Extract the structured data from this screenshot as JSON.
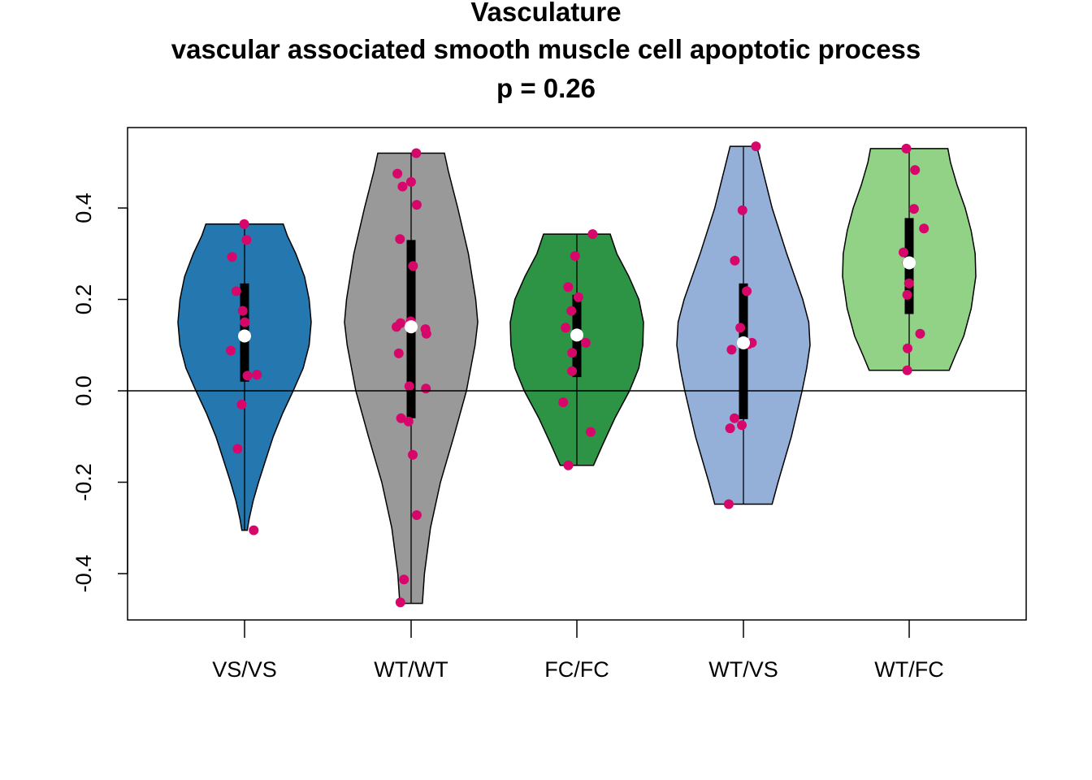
{
  "chart_data": {
    "type": "violin",
    "title": "Vasculature",
    "subtitle": "vascular associated smooth muscle cell apoptotic process",
    "pvalue_label": "p = 0.26",
    "xlabel": "",
    "ylabel": "",
    "ylim": [
      -0.5,
      0.55
    ],
    "y_ticks": [
      -0.4,
      -0.2,
      0.0,
      0.2,
      0.4
    ],
    "y_tick_labels": [
      "-0.4",
      "-0.2",
      "0.0",
      "0.2",
      "0.4"
    ],
    "reference_line_y": 0.0,
    "point_color": "#d6066b",
    "median_color": "#ffffff",
    "groups": [
      {
        "name": "VS/VS",
        "color": "#2577b0",
        "min": -0.305,
        "max": 0.365,
        "q1": 0.02,
        "median": 0.12,
        "q3": 0.235,
        "density": [
          [
            -0.305,
            0.04
          ],
          [
            -0.28,
            0.07
          ],
          [
            -0.24,
            0.13
          ],
          [
            -0.2,
            0.21
          ],
          [
            -0.15,
            0.32
          ],
          [
            -0.1,
            0.43
          ],
          [
            -0.05,
            0.57
          ],
          [
            0.0,
            0.73
          ],
          [
            0.05,
            0.88
          ],
          [
            0.1,
            0.97
          ],
          [
            0.15,
            1.0
          ],
          [
            0.2,
            0.97
          ],
          [
            0.25,
            0.9
          ],
          [
            0.3,
            0.77
          ],
          [
            0.34,
            0.64
          ],
          [
            0.365,
            0.58
          ]
        ],
        "points": [
          0.365,
          0.33,
          0.293,
          0.218,
          0.175,
          0.15,
          0.088,
          0.035,
          0.033,
          -0.03,
          -0.127,
          -0.305
        ]
      },
      {
        "name": "WT/WT",
        "color": "#999999",
        "min": -0.465,
        "max": 0.52,
        "q1": -0.06,
        "median": 0.14,
        "q3": 0.33,
        "density": [
          [
            -0.465,
            0.17
          ],
          [
            -0.4,
            0.2
          ],
          [
            -0.3,
            0.29
          ],
          [
            -0.2,
            0.44
          ],
          [
            -0.1,
            0.64
          ],
          [
            0.0,
            0.83
          ],
          [
            0.1,
            0.96
          ],
          [
            0.15,
            1.0
          ],
          [
            0.2,
            0.97
          ],
          [
            0.3,
            0.86
          ],
          [
            0.4,
            0.7
          ],
          [
            0.48,
            0.56
          ],
          [
            0.52,
            0.5
          ]
        ],
        "points": [
          0.52,
          0.475,
          0.457,
          0.447,
          0.407,
          0.332,
          0.273,
          0.152,
          0.148,
          0.14,
          0.135,
          0.125,
          0.082,
          0.01,
          0.005,
          -0.06,
          -0.067,
          -0.14,
          -0.272,
          -0.413,
          -0.463
        ]
      },
      {
        "name": "FC/FC",
        "color": "#2c9444",
        "min": -0.163,
        "max": 0.343,
        "q1": 0.03,
        "median": 0.122,
        "q3": 0.21,
        "density": [
          [
            -0.163,
            0.25
          ],
          [
            -0.12,
            0.38
          ],
          [
            -0.06,
            0.57
          ],
          [
            0.0,
            0.79
          ],
          [
            0.05,
            0.93
          ],
          [
            0.1,
            0.99
          ],
          [
            0.15,
            1.0
          ],
          [
            0.2,
            0.93
          ],
          [
            0.25,
            0.78
          ],
          [
            0.3,
            0.6
          ],
          [
            0.343,
            0.5
          ]
        ],
        "points": [
          0.343,
          0.295,
          0.227,
          0.205,
          0.175,
          0.138,
          0.105,
          0.083,
          0.043,
          -0.025,
          -0.09,
          -0.163
        ]
      },
      {
        "name": "WT/VS",
        "color": "#95b0d8",
        "min": -0.248,
        "max": 0.535,
        "q1": -0.062,
        "median": 0.105,
        "q3": 0.235,
        "density": [
          [
            -0.248,
            0.43
          ],
          [
            -0.2,
            0.52
          ],
          [
            -0.1,
            0.72
          ],
          [
            0.0,
            0.88
          ],
          [
            0.05,
            0.95
          ],
          [
            0.1,
            1.0
          ],
          [
            0.15,
            0.98
          ],
          [
            0.2,
            0.89
          ],
          [
            0.3,
            0.65
          ],
          [
            0.4,
            0.43
          ],
          [
            0.5,
            0.26
          ],
          [
            0.535,
            0.2
          ]
        ],
        "points": [
          0.535,
          0.395,
          0.285,
          0.218,
          0.138,
          0.105,
          0.102,
          0.09,
          -0.06,
          -0.075,
          -0.082,
          -0.248
        ]
      },
      {
        "name": "WT/FC",
        "color": "#91d286",
        "min": 0.045,
        "max": 0.53,
        "q1": 0.168,
        "median": 0.28,
        "q3": 0.378,
        "density": [
          [
            0.045,
            0.6
          ],
          [
            0.08,
            0.7
          ],
          [
            0.12,
            0.82
          ],
          [
            0.18,
            0.93
          ],
          [
            0.25,
            1.0
          ],
          [
            0.3,
            0.99
          ],
          [
            0.35,
            0.93
          ],
          [
            0.4,
            0.84
          ],
          [
            0.45,
            0.72
          ],
          [
            0.5,
            0.62
          ],
          [
            0.53,
            0.58
          ]
        ],
        "points": [
          0.53,
          0.483,
          0.398,
          0.355,
          0.303,
          0.28,
          0.235,
          0.21,
          0.125,
          0.093,
          0.045
        ]
      }
    ]
  }
}
